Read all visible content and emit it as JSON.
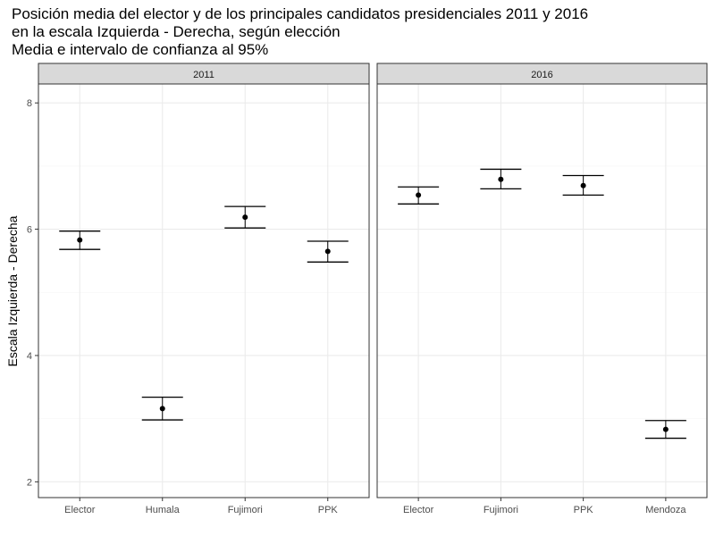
{
  "chart_data": {
    "type": "errorbar",
    "title_lines": [
      "Posición media del elector y de los principales candidatos presidenciales 2011 y 2016",
      "en la escala Izquierda - Derecha, según elección",
      "Media e intervalo de confianza al 95%"
    ],
    "ylabel": "Escala Izquierda - Derecha",
    "ylim": [
      1.75,
      8.3
    ],
    "yticks": [
      "2",
      "4",
      "6",
      "8"
    ],
    "grid": true,
    "panels": [
      {
        "label": "2011",
        "points": [
          {
            "category": "Elector",
            "mean": 5.83,
            "lower": 5.68,
            "upper": 5.97
          },
          {
            "category": "Humala",
            "mean": 3.16,
            "lower": 2.98,
            "upper": 3.34
          },
          {
            "category": "Fujimori",
            "mean": 6.19,
            "lower": 6.02,
            "upper": 6.36
          },
          {
            "category": "PPK",
            "mean": 5.65,
            "lower": 5.48,
            "upper": 5.81
          }
        ]
      },
      {
        "label": "2016",
        "points": [
          {
            "category": "Elector",
            "mean": 6.54,
            "lower": 6.4,
            "upper": 6.67
          },
          {
            "category": "Fujimori",
            "mean": 6.79,
            "lower": 6.64,
            "upper": 6.95
          },
          {
            "category": "PPK",
            "mean": 6.69,
            "lower": 6.54,
            "upper": 6.85
          },
          {
            "category": "Mendoza",
            "mean": 2.83,
            "lower": 2.69,
            "upper": 2.97
          }
        ]
      }
    ]
  },
  "colors": {
    "strip_fill": "#d9d9d9",
    "panel_border": "#333333",
    "grid_major": "#ebebeb",
    "grid_minor": "#f5f5f5",
    "mark": "#000000"
  }
}
